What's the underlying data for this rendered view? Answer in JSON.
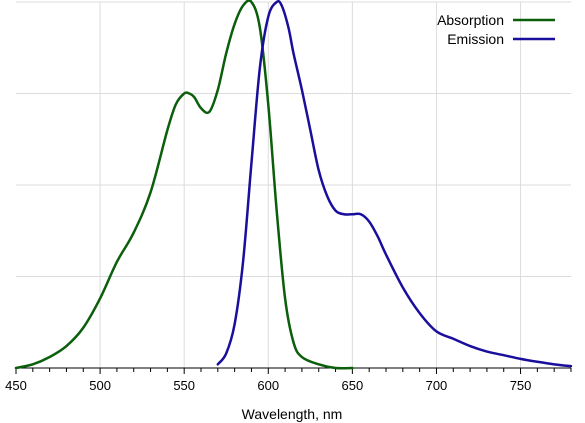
{
  "chart_data": {
    "type": "line",
    "title": "",
    "xlabel": "Wavelength, nm",
    "ylabel": "",
    "xlim": [
      450,
      780
    ],
    "ylim": [
      0,
      1
    ],
    "x_ticks": [
      450,
      500,
      550,
      600,
      650,
      700,
      750
    ],
    "x_tick_labels": [
      "450",
      "500",
      "550",
      "600",
      "650",
      "700",
      "750"
    ],
    "x_minor_tick_step": 10,
    "y_grid_values": [
      0.25,
      0.5,
      0.75,
      1.0
    ],
    "grid": true,
    "legend_position": "top-right",
    "series": [
      {
        "name": "Absorption",
        "color": "#0b5e0b",
        "x": [
          450,
          460,
          470,
          480,
          490,
          500,
          510,
          520,
          530,
          540,
          545,
          550,
          553,
          556,
          560,
          565,
          570,
          575,
          580,
          585,
          590,
          595,
          600,
          605,
          610,
          615,
          620,
          630,
          640,
          650
        ],
        "y": [
          0.0,
          0.01,
          0.03,
          0.06,
          0.11,
          0.19,
          0.29,
          0.37,
          0.48,
          0.65,
          0.72,
          0.75,
          0.75,
          0.74,
          0.71,
          0.7,
          0.76,
          0.86,
          0.94,
          0.99,
          1.0,
          0.93,
          0.72,
          0.43,
          0.19,
          0.07,
          0.03,
          0.01,
          0.0,
          0.0
        ]
      },
      {
        "name": "Emission",
        "color": "#1a0f9c",
        "x": [
          570,
          575,
          580,
          585,
          590,
          595,
          600,
          605,
          608,
          612,
          615,
          620,
          625,
          630,
          635,
          640,
          645,
          650,
          655,
          660,
          665,
          670,
          680,
          690,
          700,
          710,
          720,
          730,
          740,
          750,
          760,
          770,
          780
        ],
        "y": [
          0.01,
          0.04,
          0.12,
          0.29,
          0.56,
          0.82,
          0.96,
          1.0,
          0.99,
          0.93,
          0.86,
          0.76,
          0.65,
          0.54,
          0.47,
          0.43,
          0.42,
          0.42,
          0.42,
          0.4,
          0.36,
          0.31,
          0.22,
          0.15,
          0.1,
          0.08,
          0.06,
          0.045,
          0.035,
          0.025,
          0.017,
          0.01,
          0.005
        ]
      }
    ]
  }
}
